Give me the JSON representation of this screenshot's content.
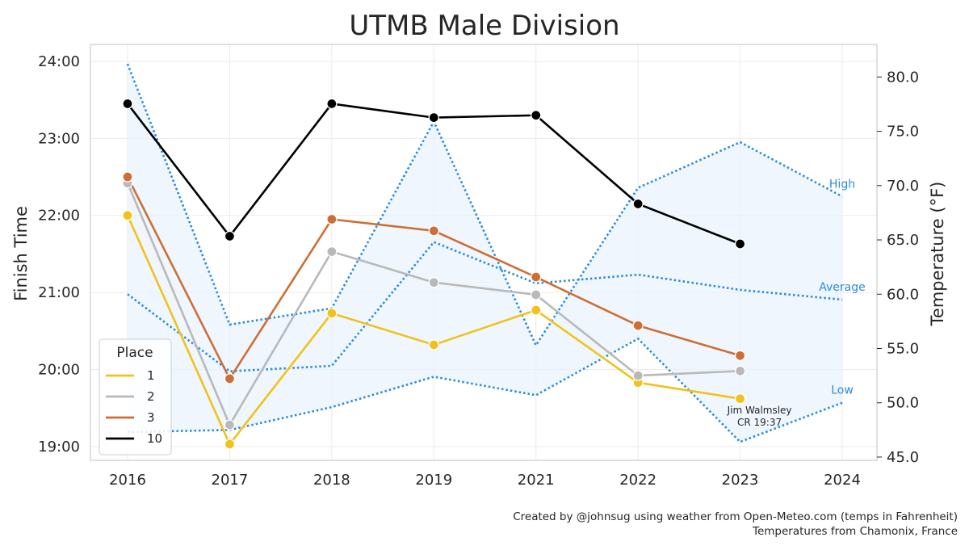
{
  "chart_data": {
    "type": "line",
    "title": "UTMB Male Division",
    "xlabel": "",
    "ylabel": "Finish Time",
    "y2label": "Temperature (°F)",
    "x": [
      "2016",
      "2017",
      "2018",
      "2019",
      "2021",
      "2022",
      "2023",
      "2024"
    ],
    "y_ticks": [
      "19:00",
      "20:00",
      "21:00",
      "22:00",
      "23:00",
      "24:00"
    ],
    "ylim_hours": [
      18.82,
      24.22
    ],
    "y2_ticks": [
      "45.0",
      "50.0",
      "55.0",
      "60.0",
      "65.0",
      "70.0",
      "75.0",
      "80.0"
    ],
    "y2lim": [
      44.7,
      83.0
    ],
    "grid": true,
    "legend": {
      "title": "Place",
      "position": "bottom-left"
    },
    "series": [
      {
        "name": "1",
        "color": "#f1c21b",
        "values": [
          22.0,
          19.03,
          20.73,
          20.32,
          20.77,
          19.83,
          19.62,
          null
        ]
      },
      {
        "name": "2",
        "color": "#b9b9b9",
        "values": [
          22.42,
          19.28,
          21.53,
          21.13,
          20.97,
          19.92,
          19.98,
          null
        ]
      },
      {
        "name": "3",
        "color": "#cd6f35",
        "values": [
          22.5,
          19.88,
          21.95,
          21.8,
          21.2,
          20.57,
          20.18,
          null
        ]
      },
      {
        "name": "10",
        "color": "#000000",
        "values": [
          23.45,
          21.73,
          23.45,
          23.27,
          23.3,
          22.15,
          21.63,
          null
        ]
      }
    ],
    "temperature_series": [
      {
        "name": "High",
        "color": "#2a8be0",
        "values": [
          81.2,
          57.2,
          58.7,
          75.9,
          55.3,
          69.8,
          74.0,
          69.0
        ]
      },
      {
        "name": "Average",
        "color": "#2a8be0",
        "values": [
          60.0,
          52.9,
          53.4,
          64.8,
          61.0,
          61.8,
          60.4,
          59.5
        ]
      },
      {
        "name": "Low",
        "color": "#2a8be0",
        "values": [
          47.3,
          47.5,
          49.6,
          52.4,
          50.7,
          55.9,
          46.4,
          50.0
        ]
      }
    ],
    "band_color": "#e8f2fc",
    "annotations": [
      {
        "text_line1": "Jim Walmsley",
        "text_line2": "CR 19:37",
        "x_index": 6
      }
    ]
  },
  "credit": {
    "line1": "Created by @johnsug using weather from Open-Meteo.com (temps in Fahrenheit)",
    "line2": "Temperatures from Chamonix, France"
  }
}
